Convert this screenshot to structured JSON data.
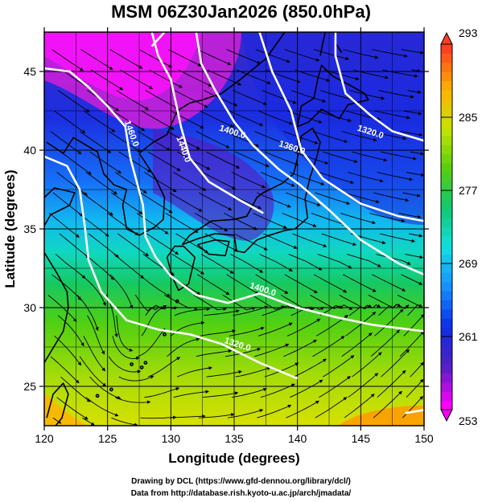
{
  "title": "MSM 06Z30Jan2026 (850.0hPa)",
  "x_axis": {
    "label": "Longitude (degrees)",
    "range": [
      120,
      150
    ],
    "ticks": [
      "120",
      "125",
      "130",
      "135",
      "140",
      "145",
      "150"
    ]
  },
  "y_axis": {
    "label": "Latitude  (degrees)",
    "range": [
      22.5,
      47.5
    ],
    "ticks": [
      "25",
      "30",
      "35",
      "40",
      "45"
    ]
  },
  "colorbar": {
    "ticks": [
      "253",
      "261",
      "269",
      "277",
      "285",
      "293"
    ],
    "range": [
      253,
      293
    ],
    "colormap": [
      "#ff00ff",
      "#5020c0",
      "#0a2ee8",
      "#1690ff",
      "#10e0e0",
      "#10c870",
      "#58d010",
      "#c8e400",
      "#ffb000",
      "#ff4020"
    ]
  },
  "contours": [
    {
      "label": "1460.0",
      "lat": 41.0,
      "lon": 126.7
    },
    {
      "label": "1440.0",
      "lat": 40.0,
      "lon": 130.8
    },
    {
      "label": "1400.0",
      "lat": 41.0,
      "lon": 134.8
    },
    {
      "label": "1360.0",
      "lat": 40.0,
      "lon": 139.5
    },
    {
      "label": "1320.0",
      "lat": 41.0,
      "lon": 145.7
    },
    {
      "label": "1400.0",
      "lat": 31.0,
      "lon": 137.2
    },
    {
      "label": "1320.0",
      "lat": 27.5,
      "lon": 135.2
    }
  ],
  "credits": [
    "Drawing by DCL (https://www.gfd-dennou.org/library/dcl/)",
    "Data from http://database.rish.kyoto-u.ac.jp/arch/jmadata/"
  ]
}
